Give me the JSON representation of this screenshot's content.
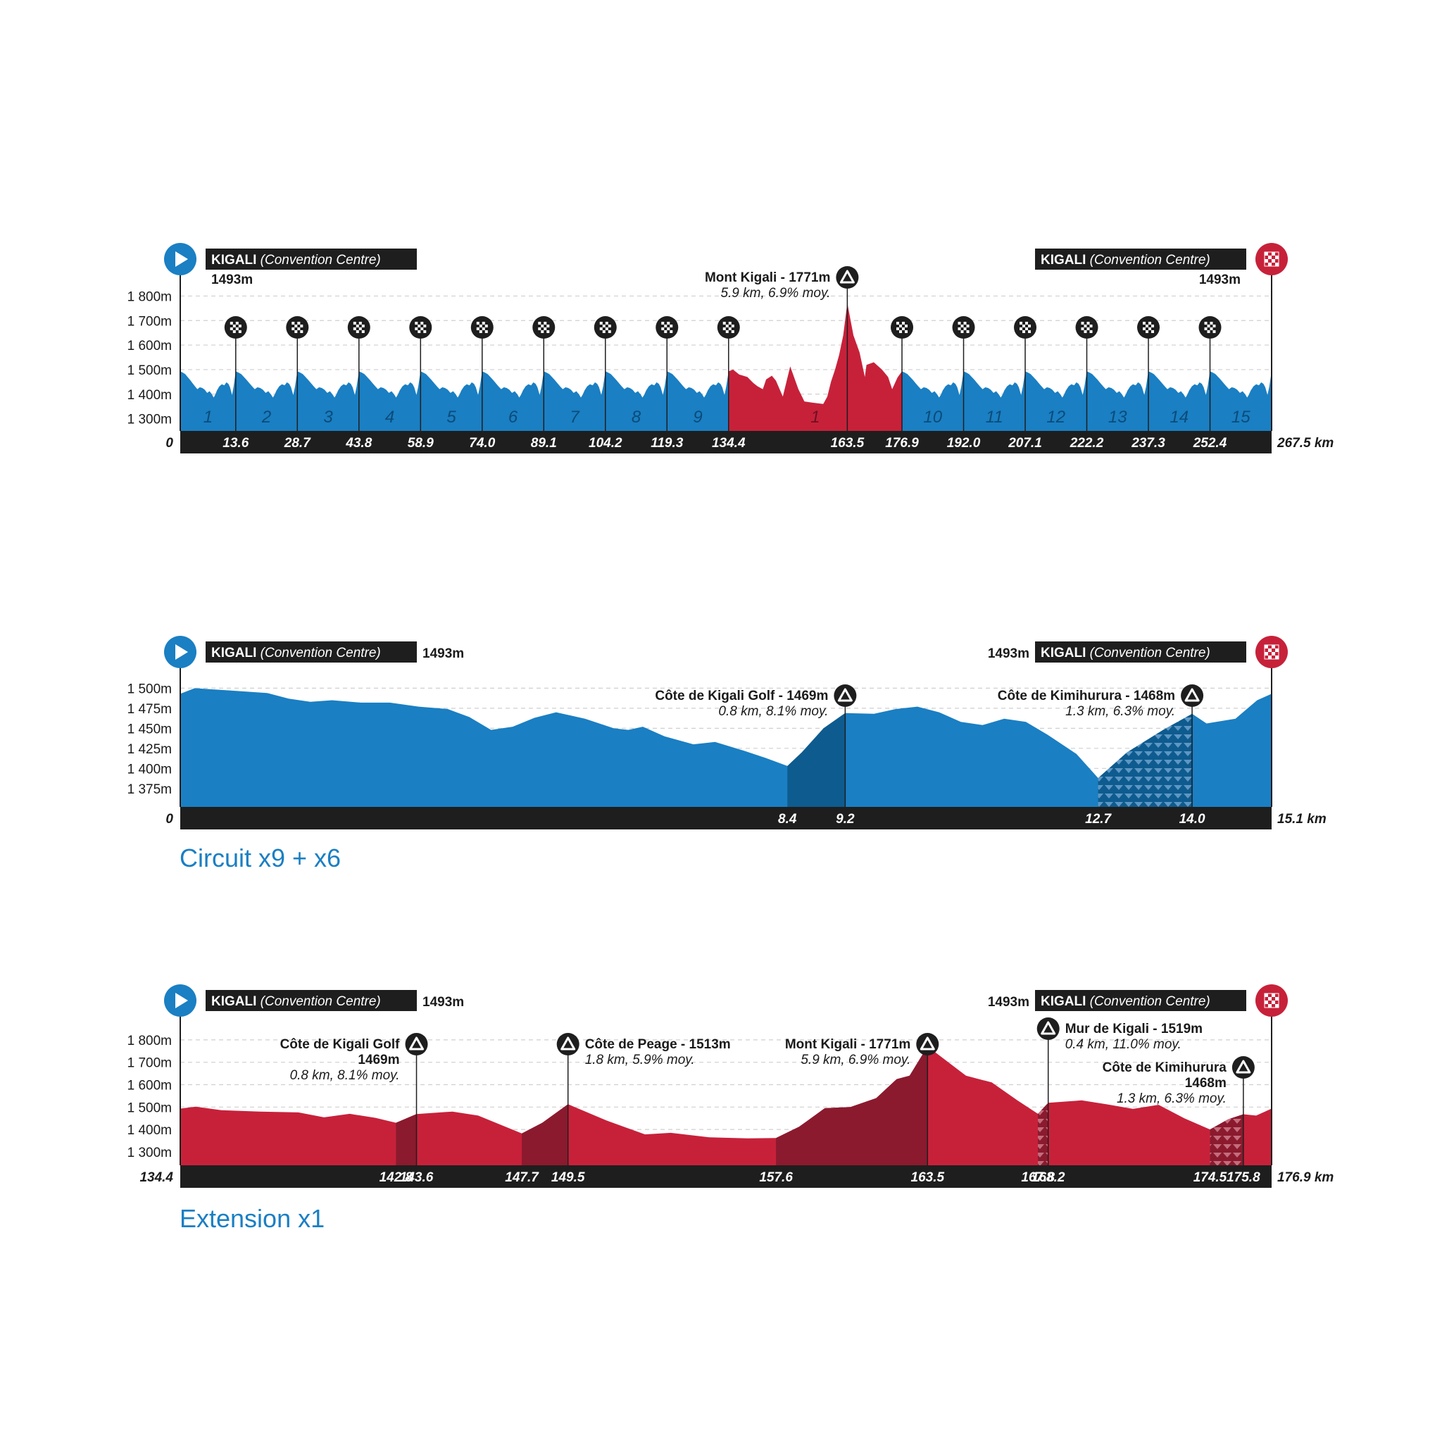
{
  "colors": {
    "blue": "#1a7fc3",
    "blue_dark": "#0e5b8f",
    "red": "#c7213a",
    "red_dark": "#8b1a2e",
    "bar": "#1e1e1e",
    "grid": "#cfcfcf",
    "text": "#1a1a1a"
  },
  "captions": {
    "circuit": "Circuit x9 + x6",
    "extension": "Extension x1"
  },
  "chart_data": [
    {
      "id": "full",
      "type": "area",
      "x_range": [
        0,
        267.5
      ],
      "xlabel_end": "267.5 km",
      "x_start_label": "0",
      "y_ticks": [
        "1 800m",
        "1 700m",
        "1 600m",
        "1 500m",
        "1 400m",
        "1 300m"
      ],
      "y_tick_values": [
        1800,
        1700,
        1600,
        1500,
        1400,
        1300
      ],
      "y_range": [
        1200,
        1850
      ],
      "grid": true,
      "start": {
        "name": "KIGALI",
        "detail": "(Convention Centre)",
        "alt": "1493m"
      },
      "finish": {
        "name": "KIGALI",
        "detail": "(Convention Centre)",
        "alt": "1493m"
      },
      "climbs": [
        {
          "label": "Mont Kigali - 1771m",
          "sub": "5.9 km, 6.9% moy.",
          "km": 163.5
        }
      ],
      "lap_markers": [
        13.6,
        28.7,
        43.8,
        58.9,
        74.0,
        89.1,
        104.2,
        119.3,
        134.4,
        176.9,
        192.0,
        207.1,
        222.2,
        237.3,
        252.4
      ],
      "x_tick_labels": [
        "13.6",
        "28.7",
        "43.8",
        "58.9",
        "74.0",
        "89.1",
        "104.2",
        "119.3",
        "134.4",
        "163.5",
        "176.9",
        "192.0",
        "207.1",
        "222.2",
        "237.3",
        "252.4"
      ],
      "x_tick_values": [
        13.6,
        28.7,
        43.8,
        58.9,
        74.0,
        89.1,
        104.2,
        119.3,
        134.4,
        163.5,
        176.9,
        192.0,
        207.1,
        222.2,
        237.3,
        252.4
      ],
      "segments": [
        {
          "label": "1",
          "from": 0,
          "to": 13.6,
          "color": "blue"
        },
        {
          "label": "2",
          "from": 13.6,
          "to": 28.7,
          "color": "blue"
        },
        {
          "label": "3",
          "from": 28.7,
          "to": 43.8,
          "color": "blue"
        },
        {
          "label": "4",
          "from": 43.8,
          "to": 58.9,
          "color": "blue"
        },
        {
          "label": "5",
          "from": 58.9,
          "to": 74.0,
          "color": "blue"
        },
        {
          "label": "6",
          "from": 74.0,
          "to": 89.1,
          "color": "blue"
        },
        {
          "label": "7",
          "from": 89.1,
          "to": 104.2,
          "color": "blue"
        },
        {
          "label": "8",
          "from": 104.2,
          "to": 119.3,
          "color": "blue"
        },
        {
          "label": "9",
          "from": 119.3,
          "to": 134.4,
          "color": "blue"
        },
        {
          "label": "1",
          "from": 134.4,
          "to": 176.9,
          "color": "red"
        },
        {
          "label": "10",
          "from": 176.9,
          "to": 192.0,
          "color": "blue"
        },
        {
          "label": "11",
          "from": 192.0,
          "to": 207.1,
          "color": "blue"
        },
        {
          "label": "12",
          "from": 207.1,
          "to": 222.2,
          "color": "blue"
        },
        {
          "label": "13",
          "from": 222.2,
          "to": 237.3,
          "color": "blue"
        },
        {
          "label": "14",
          "from": 237.3,
          "to": 252.4,
          "color": "blue"
        },
        {
          "label": "15",
          "from": 252.4,
          "to": 267.5,
          "color": "blue"
        }
      ],
      "lap_profile": [
        [
          0,
          1493
        ],
        [
          0.6,
          1488
        ],
        [
          1.2,
          1482
        ],
        [
          1.8,
          1470
        ],
        [
          2.4,
          1458
        ],
        [
          3.0,
          1445
        ],
        [
          3.6,
          1432
        ],
        [
          4.2,
          1420
        ],
        [
          4.8,
          1428
        ],
        [
          5.4,
          1425
        ],
        [
          6.0,
          1418
        ],
        [
          6.6,
          1405
        ],
        [
          7.2,
          1412
        ],
        [
          7.8,
          1398
        ],
        [
          8.2,
          1386
        ],
        [
          8.6,
          1398
        ],
        [
          9.0,
          1415
        ],
        [
          9.6,
          1432
        ],
        [
          10.2,
          1440
        ],
        [
          10.8,
          1436
        ],
        [
          11.3,
          1448
        ],
        [
          11.8,
          1442
        ],
        [
          12.2,
          1428
        ],
        [
          12.7,
          1396
        ],
        [
          13.1,
          1432
        ],
        [
          13.6,
          1493
        ]
      ],
      "extension_profile": [
        [
          134.4,
          1493
        ],
        [
          135.5,
          1500
        ],
        [
          137,
          1480
        ],
        [
          139,
          1470
        ],
        [
          140.5,
          1445
        ],
        [
          141.5,
          1432
        ],
        [
          142.8,
          1420
        ],
        [
          143.6,
          1460
        ],
        [
          145,
          1475
        ],
        [
          146,
          1455
        ],
        [
          147.7,
          1390
        ],
        [
          149.5,
          1513
        ],
        [
          151.5,
          1420
        ],
        [
          153,
          1370
        ],
        [
          155,
          1365
        ],
        [
          157.6,
          1360
        ],
        [
          158.6,
          1390
        ],
        [
          159.5,
          1450
        ],
        [
          160.5,
          1500
        ],
        [
          161.5,
          1560
        ],
        [
          162.5,
          1640
        ],
        [
          163.5,
          1771
        ],
        [
          165,
          1640
        ],
        [
          166.5,
          1570
        ],
        [
          167.8,
          1470
        ],
        [
          168.2,
          1519
        ],
        [
          170,
          1530
        ],
        [
          172,
          1500
        ],
        [
          173.5,
          1470
        ],
        [
          174.5,
          1420
        ],
        [
          175.8,
          1468
        ],
        [
          176.9,
          1493
        ]
      ]
    },
    {
      "id": "circuit",
      "type": "area",
      "x_range": [
        0,
        15.1
      ],
      "xlabel_end": "15.1 km",
      "x_start_label": "0",
      "y_ticks": [
        "1 500m",
        "1 475m",
        "1 450m",
        "1 425m",
        "1 400m",
        "1 375m"
      ],
      "y_tick_values": [
        1500,
        1475,
        1450,
        1425,
        1400,
        1375
      ],
      "y_range": [
        1350,
        1510
      ],
      "grid": true,
      "start": {
        "name": "KIGALI",
        "detail": "(Convention Centre)",
        "alt": "1493m"
      },
      "finish": {
        "name": "KIGALI",
        "detail": "(Convention Centre)",
        "alt": "1493m"
      },
      "climbs": [
        {
          "label": "Côte de Kigali Golf - 1469m",
          "sub": "0.8 km, 8.1% moy.",
          "km": 9.2,
          "from": 8.4,
          "style": "dark"
        },
        {
          "label": "Côte de Kimihurura - 1468m",
          "sub": "1.3 km, 6.3% moy.",
          "km": 14.0,
          "from": 12.7,
          "style": "pattern"
        }
      ],
      "x_tick_labels": [
        "8.4",
        "9.2",
        "12.7",
        "14.0"
      ],
      "x_tick_values": [
        8.4,
        9.2,
        12.7,
        14.0
      ],
      "profile": [
        [
          0,
          1493
        ],
        [
          0.2,
          1500
        ],
        [
          0.7,
          1497
        ],
        [
          1.2,
          1494
        ],
        [
          1.5,
          1487
        ],
        [
          1.8,
          1483
        ],
        [
          2.1,
          1485
        ],
        [
          2.5,
          1482
        ],
        [
          2.9,
          1482
        ],
        [
          3.3,
          1477
        ],
        [
          3.7,
          1474
        ],
        [
          4.0,
          1464
        ],
        [
          4.3,
          1448
        ],
        [
          4.6,
          1452
        ],
        [
          4.9,
          1463
        ],
        [
          5.2,
          1470
        ],
        [
          5.6,
          1462
        ],
        [
          6.0,
          1450
        ],
        [
          6.2,
          1448
        ],
        [
          6.4,
          1452
        ],
        [
          6.7,
          1440
        ],
        [
          7.1,
          1430
        ],
        [
          7.4,
          1433
        ],
        [
          7.8,
          1422
        ],
        [
          8.1,
          1413
        ],
        [
          8.4,
          1403
        ],
        [
          8.6,
          1420
        ],
        [
          8.9,
          1450
        ],
        [
          9.2,
          1469
        ],
        [
          9.6,
          1468
        ],
        [
          9.9,
          1474
        ],
        [
          10.2,
          1477
        ],
        [
          10.5,
          1470
        ],
        [
          10.8,
          1458
        ],
        [
          11.1,
          1454
        ],
        [
          11.4,
          1462
        ],
        [
          11.7,
          1458
        ],
        [
          12.0,
          1442
        ],
        [
          12.4,
          1418
        ],
        [
          12.7,
          1388
        ],
        [
          13.1,
          1420
        ],
        [
          13.6,
          1448
        ],
        [
          14.0,
          1468
        ],
        [
          14.2,
          1456
        ],
        [
          14.6,
          1462
        ],
        [
          14.9,
          1485
        ],
        [
          15.1,
          1493
        ]
      ]
    },
    {
      "id": "extension",
      "type": "area",
      "x_range": [
        134.4,
        176.9
      ],
      "xlabel_end": "176.9 km",
      "x_start_label": "134.4",
      "y_ticks": [
        "1 800m",
        "1 700m",
        "1 600m",
        "1 500m",
        "1 400m",
        "1 300m"
      ],
      "y_tick_values": [
        1800,
        1700,
        1600,
        1500,
        1400,
        1300
      ],
      "y_range": [
        1200,
        1850
      ],
      "grid": true,
      "start": {
        "name": "KIGALI",
        "detail": "(Convention Centre)",
        "alt": "1493m"
      },
      "finish": {
        "name": "KIGALI",
        "detail": "(Convention Centre)",
        "alt": "1493m"
      },
      "climbs": [
        {
          "label": "Côte de Kigali Golf",
          "label2": "1469m",
          "sub": "0.8 km, 8.1% moy.",
          "km": 143.6,
          "from": 142.8,
          "style": "dark",
          "align": "left"
        },
        {
          "label": "Côte de Peage - 1513m",
          "sub": "1.8 km, 5.9% moy.",
          "km": 149.5,
          "from": 147.7,
          "style": "dark",
          "align": "right"
        },
        {
          "label": "Mont Kigali - 1771m",
          "sub": "5.9 km, 6.9% moy.",
          "km": 163.5,
          "from": 157.6,
          "style": "dark",
          "align": "left"
        },
        {
          "label": "Mur de Kigali - 1519m",
          "sub": "0.4 km, 11.0% moy.",
          "km": 168.2,
          "from": 167.8,
          "style": "pattern",
          "align": "right"
        },
        {
          "label": "Côte de Kimihurura",
          "label2": "1468m",
          "sub": "1.3 km, 6.3% moy.",
          "km": 175.8,
          "from": 174.5,
          "style": "pattern",
          "align": "left"
        }
      ],
      "x_tick_labels": [
        "142.8",
        "143.6",
        "147.7",
        "149.5",
        "157.6",
        "163.5",
        "167.8",
        "168.2",
        "174.5",
        "175.8"
      ],
      "x_tick_values": [
        142.8,
        143.6,
        147.7,
        149.5,
        157.6,
        163.5,
        167.8,
        168.2,
        174.5,
        175.8
      ],
      "profile": [
        [
          134.4,
          1493
        ],
        [
          135.0,
          1502
        ],
        [
          136.0,
          1486
        ],
        [
          137.5,
          1480
        ],
        [
          139.0,
          1476
        ],
        [
          140.0,
          1454
        ],
        [
          141.0,
          1470
        ],
        [
          142.0,
          1452
        ],
        [
          142.8,
          1430
        ],
        [
          143.6,
          1469
        ],
        [
          145.0,
          1480
        ],
        [
          146.0,
          1462
        ],
        [
          147.7,
          1382
        ],
        [
          148.5,
          1430
        ],
        [
          149.5,
          1513
        ],
        [
          151.0,
          1440
        ],
        [
          152.5,
          1378
        ],
        [
          153.5,
          1385
        ],
        [
          155.0,
          1365
        ],
        [
          156.5,
          1360
        ],
        [
          157.6,
          1362
        ],
        [
          158.5,
          1412
        ],
        [
          159.5,
          1495
        ],
        [
          160.5,
          1500
        ],
        [
          161.5,
          1540
        ],
        [
          162.3,
          1625
        ],
        [
          162.8,
          1640
        ],
        [
          163.5,
          1771
        ],
        [
          165.0,
          1640
        ],
        [
          166.0,
          1610
        ],
        [
          167.0,
          1530
        ],
        [
          167.8,
          1470
        ],
        [
          168.2,
          1519
        ],
        [
          169.5,
          1530
        ],
        [
          170.5,
          1512
        ],
        [
          171.5,
          1492
        ],
        [
          172.5,
          1510
        ],
        [
          173.5,
          1450
        ],
        [
          174.5,
          1400
        ],
        [
          175.2,
          1445
        ],
        [
          175.8,
          1468
        ],
        [
          176.3,
          1462
        ],
        [
          176.9,
          1493
        ]
      ]
    }
  ]
}
